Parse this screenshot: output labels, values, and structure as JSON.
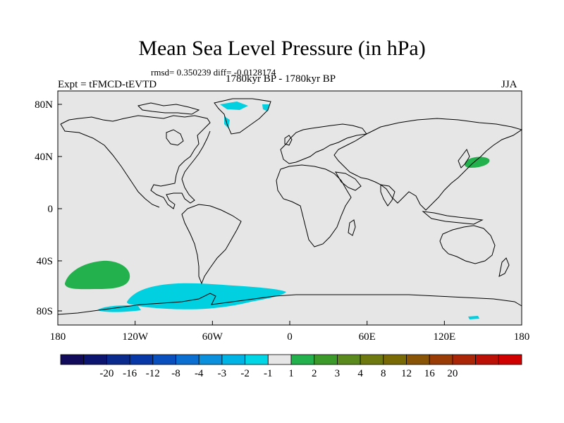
{
  "title": "Mean Sea Level Pressure (in hPa)",
  "stats": "rmsd= 0.350239 diff= -0.0128174",
  "experiment": "Expt = tFMCD-tEVTD",
  "period": "1780kyr BP - 1780kyr BP",
  "season": "JJA",
  "map": {
    "background_color": "#e6e6e6",
    "lat_ticks": [
      "80N",
      "40N",
      "0",
      "40S",
      "80S"
    ],
    "lon_ticks": [
      "180",
      "120W",
      "60W",
      "0",
      "60E",
      "120E",
      "180"
    ],
    "anomalies": [
      {
        "region": "North Pacific off Japan",
        "level": "2",
        "color": "#22b14c"
      },
      {
        "region": "South Pacific",
        "level": "2",
        "color": "#22b14c"
      },
      {
        "region": "Greenland",
        "level": "-1",
        "color": "#00d0e0"
      },
      {
        "region": "Southern Ocean / Antarctic coast",
        "level": "-1",
        "color": "#00d0e0"
      }
    ]
  },
  "colorbar": {
    "colors": [
      "#120a5a",
      "#0c1670",
      "#0a2a8e",
      "#0838a8",
      "#0a4fbe",
      "#0a6fd0",
      "#0a90dc",
      "#00b4e6",
      "#00d6e6",
      "#e6e6e6",
      "#22b14c",
      "#3c9a2a",
      "#5a8a1e",
      "#6e7a10",
      "#7a6a06",
      "#8a5406",
      "#9a3c06",
      "#aa2606",
      "#bc1006",
      "#d00000"
    ],
    "labels": [
      "-20",
      "-16",
      "-12",
      "-8",
      "-4",
      "-3",
      "-2",
      "-1",
      "1",
      "2",
      "3",
      "4",
      "8",
      "12",
      "16",
      "20"
    ]
  }
}
